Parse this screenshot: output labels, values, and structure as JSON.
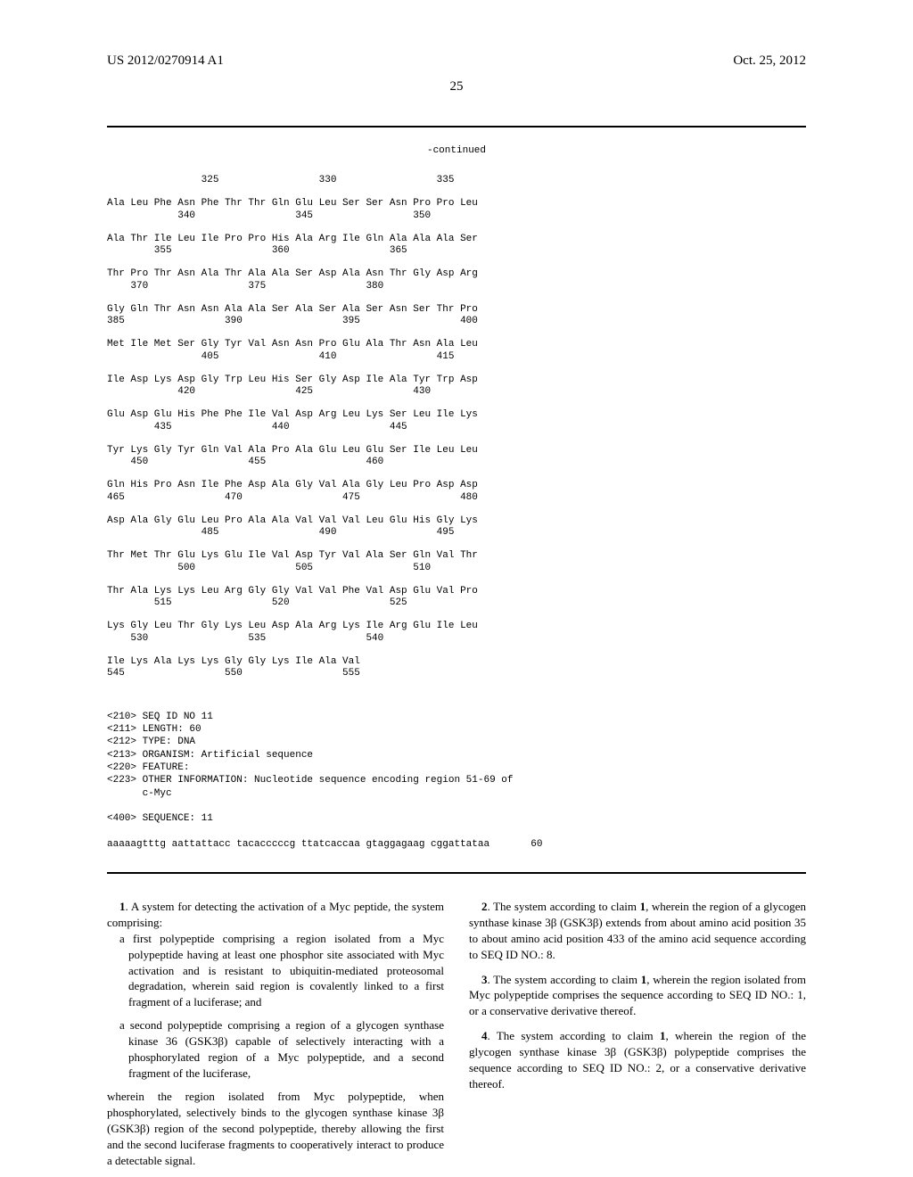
{
  "header": {
    "pub_number": "US 2012/0270914 A1",
    "pub_date": "Oct. 25, 2012"
  },
  "page_number": "25",
  "continued_label": "-continued",
  "sequence": {
    "blocks": [
      {
        "numline": "                325                 330                 335",
        "seqline": ""
      },
      {
        "numline": "            340                 345                 350",
        "seqline": "Ala Leu Phe Asn Phe Thr Thr Gln Glu Leu Ser Ser Asn Pro Pro Leu"
      },
      {
        "numline": "        355                 360                 365",
        "seqline": "Ala Thr Ile Leu Ile Pro Pro His Ala Arg Ile Gln Ala Ala Ala Ser"
      },
      {
        "numline": "    370                 375                 380",
        "seqline": "Thr Pro Thr Asn Ala Thr Ala Ala Ser Asp Ala Asn Thr Gly Asp Arg"
      },
      {
        "numline": "385                 390                 395                 400",
        "seqline": "Gly Gln Thr Asn Asn Ala Ala Ser Ala Ser Ala Ser Asn Ser Thr Pro"
      },
      {
        "numline": "                405                 410                 415",
        "seqline": "Met Ile Met Ser Gly Tyr Val Asn Asn Pro Glu Ala Thr Asn Ala Leu"
      },
      {
        "numline": "            420                 425                 430",
        "seqline": "Ile Asp Lys Asp Gly Trp Leu His Ser Gly Asp Ile Ala Tyr Trp Asp"
      },
      {
        "numline": "        435                 440                 445",
        "seqline": "Glu Asp Glu His Phe Phe Ile Val Asp Arg Leu Lys Ser Leu Ile Lys"
      },
      {
        "numline": "    450                 455                 460",
        "seqline": "Tyr Lys Gly Tyr Gln Val Ala Pro Ala Glu Leu Glu Ser Ile Leu Leu"
      },
      {
        "numline": "465                 470                 475                 480",
        "seqline": "Gln His Pro Asn Ile Phe Asp Ala Gly Val Ala Gly Leu Pro Asp Asp"
      },
      {
        "numline": "                485                 490                 495",
        "seqline": "Asp Ala Gly Glu Leu Pro Ala Ala Val Val Val Leu Glu His Gly Lys"
      },
      {
        "numline": "            500                 505                 510",
        "seqline": "Thr Met Thr Glu Lys Glu Ile Val Asp Tyr Val Ala Ser Gln Val Thr"
      },
      {
        "numline": "        515                 520                 525",
        "seqline": "Thr Ala Lys Lys Leu Arg Gly Gly Val Val Phe Val Asp Glu Val Pro"
      },
      {
        "numline": "    530                 535                 540",
        "seqline": "Lys Gly Leu Thr Gly Lys Leu Asp Ala Arg Lys Ile Arg Glu Ile Leu"
      },
      {
        "numline": "545                 550                 555",
        "seqline": "Ile Lys Ala Lys Lys Gly Gly Lys Ile Ala Val"
      }
    ]
  },
  "seq_annotation": {
    "lines": [
      "<210> SEQ ID NO 11",
      "<211> LENGTH: 60",
      "<212> TYPE: DNA",
      "<213> ORGANISM: Artificial sequence",
      "<220> FEATURE:",
      "<223> OTHER INFORMATION: Nucleotide sequence encoding region 51-69 of",
      "      c-Myc",
      "",
      "<400> SEQUENCE: 11",
      "",
      "aaaaagtttg aattattacc tacacccccg ttatcaccaa gtaggagaag cggattataa       60"
    ]
  },
  "claims": [
    {
      "num": "1",
      "intro": "1. A system for detecting the activation of a Myc peptide, the system comprising:",
      "subs": [
        "a first polypeptide comprising a region isolated from a Myc polypeptide having at least one phosphor site associated with Myc activation and is resistant to ubiquitin-mediated proteosomal degradation, wherein said region is covalently linked to a first fragment of a luciferase; and",
        "a second polypeptide comprising a region of a glycogen synthase kinase 36 (GSK3β) capable of selectively interacting with a phosphorylated region of a Myc polypeptide, and a second fragment of the luciferase,"
      ],
      "cont": "wherein the region isolated from Myc polypeptide, when phosphorylated, selectively binds to the glycogen synthase kinase 3β (GSK3β) region of the second polypeptide, thereby allowing the first and the second luciferase fragments to cooperatively interact to produce a detectable signal."
    },
    {
      "num": "2",
      "text": "2. The system according to claim 1, wherein the region of a glycogen synthase kinase 3β (GSK3β) extends from about amino acid position 35 to about amino acid position 433 of the amino acid sequence according to SEQ ID NO.: 8."
    },
    {
      "num": "3",
      "text": "3. The system according to claim 1, wherein the region isolated from Myc polypeptide comprises the sequence according to SEQ ID NO.: 1, or a conservative derivative thereof."
    },
    {
      "num": "4",
      "text": "4. The system according to claim 1, wherein the region of the glycogen synthase kinase 3β (GSK3β) polypeptide comprises the sequence according to SEQ ID NO.: 2, or a conservative derivative thereof."
    }
  ]
}
